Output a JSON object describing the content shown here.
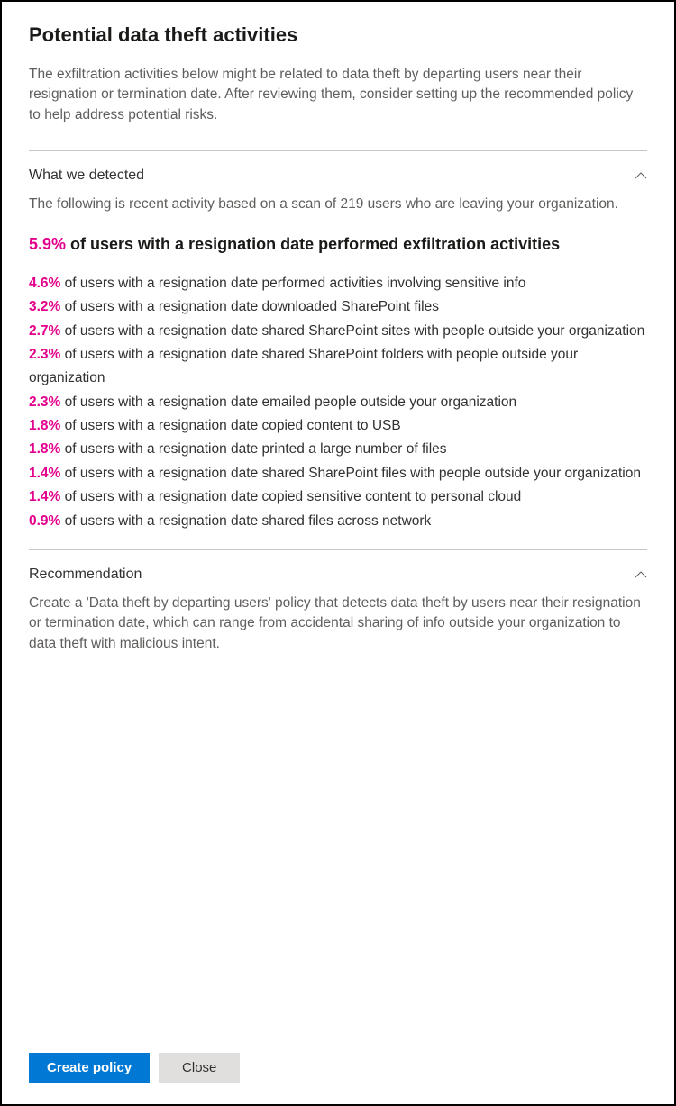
{
  "panel": {
    "title": "Potential data theft activities",
    "description": "The exfiltration activities below might be related to data theft by departing users near their resignation or termination date. After reviewing them, consider setting up the recommended policy to help address potential risks."
  },
  "detected": {
    "section_title": "What we detected",
    "intro": "The following is recent activity based on a scan of 219 users who are leaving your organization.",
    "headline_percent": "5.9%",
    "headline_text": " of users with a resignation date performed exfiltration activities",
    "stats": [
      {
        "percent": "4.6%",
        "text": " of users with a resignation date performed activities involving sensitive info"
      },
      {
        "percent": "3.2%",
        "text": " of users with a resignation date downloaded SharePoint files"
      },
      {
        "percent": "2.7%",
        "text": " of users with a resignation date shared SharePoint sites with people outside your organization"
      },
      {
        "percent": "2.3%",
        "text": " of users with a resignation date shared SharePoint folders with people outside your organization"
      },
      {
        "percent": "2.3%",
        "text": " of users with a resignation date emailed people outside your organization"
      },
      {
        "percent": "1.8%",
        "text": " of users with a resignation date copied content to USB"
      },
      {
        "percent": "1.8%",
        "text": " of users with a resignation date printed a large number of files"
      },
      {
        "percent": "1.4%",
        "text": " of users with a resignation date shared SharePoint files with people outside your organization"
      },
      {
        "percent": "1.4%",
        "text": " of users with a resignation date copied sensitive content to personal cloud"
      },
      {
        "percent": "0.9%",
        "text": " of users with a resignation date shared files across network"
      }
    ]
  },
  "recommendation": {
    "section_title": "Recommendation",
    "text": "Create a 'Data theft by departing users' policy that detects data theft by users near their resignation or termination date, which can range from accidental sharing of info outside your organization to data theft with malicious intent."
  },
  "footer": {
    "primary_label": "Create policy",
    "secondary_label": "Close"
  },
  "colors": {
    "accent_pink": "#e3008c",
    "primary_blue": "#0078d4",
    "text_primary": "#323130",
    "text_secondary": "#605e5c",
    "divider": "#c8c6c4",
    "button_secondary_bg": "#e1dfdd"
  }
}
